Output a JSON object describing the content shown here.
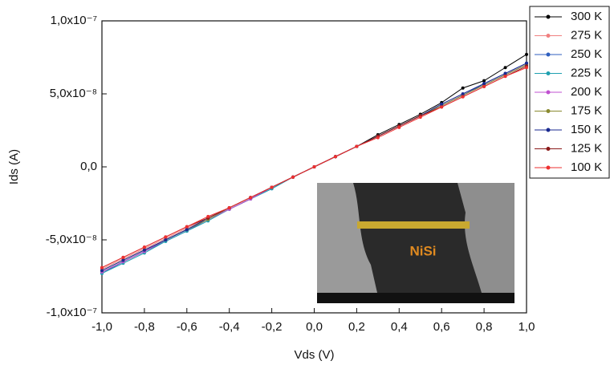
{
  "chart_data": {
    "type": "line",
    "x_label": "Vds (V)",
    "y_label": "Ids (A)",
    "x": [
      -1,
      -0.9,
      -0.8,
      -0.7,
      -0.6,
      -0.5,
      -0.4,
      -0.3,
      -0.2,
      -0.1,
      0,
      0.1,
      0.2,
      0.3,
      0.4,
      0.5,
      0.6,
      0.7,
      0.8,
      0.9,
      1
    ],
    "series": [
      {
        "name": "300 K",
        "color": "#000000",
        "values": [
          -7.2e-08,
          -6.5e-08,
          -5.8e-08,
          -5e-08,
          -4.3e-08,
          -3.6e-08,
          -2.9e-08,
          -2.2e-08,
          -1.4e-08,
          -7e-09,
          0,
          7e-09,
          1.4e-08,
          2.2e-08,
          2.9e-08,
          3.6e-08,
          4.4e-08,
          5.4e-08,
          5.9e-08,
          6.8e-08,
          7.7e-08
        ]
      },
      {
        "name": "275 K",
        "color": "#f08080",
        "values": [
          -7e-08,
          -6.3e-08,
          -5.6e-08,
          -4.9e-08,
          -4.2e-08,
          -3.5e-08,
          -2.8e-08,
          -2.1e-08,
          -1.4e-08,
          -7e-09,
          0,
          7e-09,
          1.4e-08,
          2.1e-08,
          2.8e-08,
          3.5e-08,
          4.2e-08,
          4.9e-08,
          5.6e-08,
          6.3e-08,
          7e-08
        ]
      },
      {
        "name": "250 K",
        "color": "#2f5fbf",
        "values": [
          -7.3e-08,
          -6.5e-08,
          -5.8e-08,
          -5.1e-08,
          -4.4e-08,
          -3.6e-08,
          -2.9e-08,
          -2.2e-08,
          -1.5e-08,
          -7e-09,
          0,
          7e-09,
          1.4e-08,
          2.1e-08,
          2.8e-08,
          3.5e-08,
          4.2e-08,
          4.9e-08,
          5.7e-08,
          6.4e-08,
          7.1e-08
        ]
      },
      {
        "name": "225 K",
        "color": "#20a0b0",
        "values": [
          -7.3e-08,
          -6.6e-08,
          -5.9e-08,
          -5.1e-08,
          -4.4e-08,
          -3.7e-08,
          -2.9e-08,
          -2.2e-08,
          -1.5e-08,
          -7e-09,
          0,
          7e-09,
          1.4e-08,
          2.1e-08,
          2.8e-08,
          3.5e-08,
          4.2e-08,
          4.9e-08,
          5.6e-08,
          6.3e-08,
          7e-08
        ]
      },
      {
        "name": "200 K",
        "color": "#c050d0",
        "values": [
          -7.2e-08,
          -6.5e-08,
          -5.8e-08,
          -5e-08,
          -4.3e-08,
          -3.6e-08,
          -2.9e-08,
          -2.2e-08,
          -1.4e-08,
          -7e-09,
          0,
          7e-09,
          1.4e-08,
          2.1e-08,
          2.8e-08,
          3.5e-08,
          4.2e-08,
          4.9e-08,
          5.6e-08,
          6.3e-08,
          7e-08
        ]
      },
      {
        "name": "175 K",
        "color": "#8a8a30",
        "values": [
          -7.1e-08,
          -6.4e-08,
          -5.7e-08,
          -5e-08,
          -4.3e-08,
          -3.6e-08,
          -2.8e-08,
          -2.1e-08,
          -1.4e-08,
          -7e-09,
          0,
          7e-09,
          1.4e-08,
          2.1e-08,
          2.8e-08,
          3.5e-08,
          4.2e-08,
          4.9e-08,
          5.6e-08,
          6.3e-08,
          7e-08
        ]
      },
      {
        "name": "150 K",
        "color": "#1a2a90",
        "values": [
          -7.1e-08,
          -6.4e-08,
          -5.7e-08,
          -5e-08,
          -4.3e-08,
          -3.5e-08,
          -2.8e-08,
          -2.1e-08,
          -1.4e-08,
          -7e-09,
          0,
          7e-09,
          1.4e-08,
          2.1e-08,
          2.8e-08,
          3.5e-08,
          4.3e-08,
          5e-08,
          5.7e-08,
          6.4e-08,
          7.1e-08
        ]
      },
      {
        "name": "125 K",
        "color": "#8b1a1a",
        "values": [
          -6.9e-08,
          -6.2e-08,
          -5.5e-08,
          -4.8e-08,
          -4.1e-08,
          -3.5e-08,
          -2.8e-08,
          -2.1e-08,
          -1.4e-08,
          -7e-09,
          0,
          7e-09,
          1.4e-08,
          2.1e-08,
          2.8e-08,
          3.5e-08,
          4.1e-08,
          4.8e-08,
          5.5e-08,
          6.2e-08,
          6.9e-08
        ]
      },
      {
        "name": "100 K",
        "color": "#ee3030",
        "values": [
          -6.9e-08,
          -6.2e-08,
          -5.5e-08,
          -4.8e-08,
          -4.1e-08,
          -3.4e-08,
          -2.8e-08,
          -2.1e-08,
          -1.4e-08,
          -7e-09,
          0,
          7e-09,
          1.4e-08,
          2e-08,
          2.7e-08,
          3.4e-08,
          4.1e-08,
          4.8e-08,
          5.5e-08,
          6.2e-08,
          6.8e-08
        ]
      }
    ],
    "xlim": [
      -1,
      1
    ],
    "xticks": [
      {
        "value": -1,
        "label": "-1,0"
      },
      {
        "value": -0.8,
        "label": "-0,8"
      },
      {
        "value": -0.6,
        "label": "-0,6"
      },
      {
        "value": -0.4,
        "label": "-0,4"
      },
      {
        "value": -0.2,
        "label": "-0,2"
      },
      {
        "value": 0,
        "label": "0,0"
      },
      {
        "value": 0.2,
        "label": "0,2"
      },
      {
        "value": 0.4,
        "label": "0,4"
      },
      {
        "value": 0.6,
        "label": "0,6"
      },
      {
        "value": 0.8,
        "label": "0,8"
      },
      {
        "value": 1,
        "label": "1,0"
      }
    ],
    "ylim": [
      -1e-07,
      1e-07
    ],
    "yticks": [
      {
        "value": -1e-07,
        "label": "-1,0x10⁻⁷"
      },
      {
        "value": -5e-08,
        "label": "-5,0x10⁻⁸"
      },
      {
        "value": 0,
        "label": "0,0"
      },
      {
        "value": 5e-08,
        "label": "5,0x10⁻⁸"
      },
      {
        "value": 1e-07,
        "label": "1,0x10⁻⁷"
      }
    ],
    "annotations": [
      "NiSi"
    ],
    "legend": "outside-right"
  }
}
